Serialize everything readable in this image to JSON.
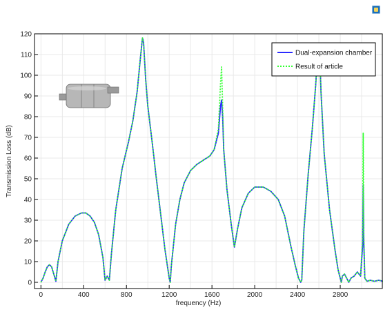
{
  "toolbar": {
    "export_icon": "image-export-icon"
  },
  "chart_data": {
    "type": "line",
    "title": "",
    "xlabel": "frequency (Hz)",
    "ylabel": "Transmission Loss (dB)",
    "xlim": [
      -60,
      3200
    ],
    "ylim": [
      -3,
      120
    ],
    "xticks": [
      0,
      400,
      800,
      1200,
      1600,
      2000,
      2400,
      2800
    ],
    "yticks": [
      0,
      10,
      20,
      30,
      40,
      50,
      60,
      70,
      80,
      90,
      100,
      110,
      120
    ],
    "xtick_labels": [
      "0",
      "400",
      "800",
      "1200",
      "1600",
      "2000",
      "2400",
      "2800"
    ],
    "ytick_labels": [
      "0",
      "10",
      "20",
      "30",
      "40",
      "50",
      "60",
      "70",
      "80",
      "90",
      "100",
      "110",
      "120"
    ],
    "grid": true,
    "legend_position": "top-right",
    "colors": {
      "primary": "#2b2bff",
      "secondary": "#33ff33"
    },
    "series": [
      {
        "name": "Dual-expansion chamber",
        "color": "#2b2bff",
        "style": "solid",
        "x": [
          0,
          20,
          40,
          60,
          80,
          100,
          120,
          140,
          160,
          200,
          260,
          320,
          380,
          420,
          460,
          500,
          540,
          580,
          600,
          620,
          640,
          660,
          700,
          760,
          820,
          860,
          900,
          930,
          950,
          960,
          980,
          1000,
          1040,
          1080,
          1120,
          1160,
          1200,
          1210,
          1220,
          1260,
          1300,
          1340,
          1400,
          1460,
          1520,
          1580,
          1620,
          1660,
          1680,
          1690,
          1700,
          1710,
          1740,
          1780,
          1810,
          1840,
          1880,
          1940,
          2000,
          2080,
          2150,
          2220,
          2280,
          2340,
          2380,
          2410,
          2430,
          2440,
          2460,
          2500,
          2540,
          2570,
          2590,
          2600,
          2610,
          2620,
          2650,
          2700,
          2750,
          2780,
          2800,
          2810,
          2820,
          2840,
          2860,
          2880,
          2900,
          2930,
          2960,
          2990,
          3010,
          3015,
          3020,
          3030,
          3050,
          3080,
          3120,
          3160,
          3200
        ],
        "y": [
          0,
          2,
          5,
          7.5,
          8.5,
          7.5,
          4,
          0.5,
          10,
          20,
          28,
          32,
          33.5,
          33.5,
          32,
          29,
          23,
          12,
          1,
          3,
          1,
          14,
          35,
          55,
          68,
          78,
          92,
          108,
          118,
          116,
          98,
          85,
          68,
          50,
          33,
          16,
          2,
          0,
          8,
          28,
          40,
          48,
          54,
          57,
          59,
          61,
          64,
          72,
          85,
          88,
          80,
          64,
          45,
          28,
          17,
          26,
          36,
          43,
          46,
          46,
          44,
          40,
          32,
          17,
          8,
          2,
          0,
          1,
          25,
          52,
          75,
          95,
          112,
          115,
          108,
          92,
          62,
          35,
          16,
          6,
          2,
          0,
          3,
          4,
          2,
          0,
          2,
          3,
          5,
          3,
          18,
          47,
          20,
          2,
          0.5,
          1,
          0.5,
          1,
          0.5
        ]
      },
      {
        "name": "Result of article",
        "color": "#33ff33",
        "style": "dotted",
        "x": [
          0,
          20,
          40,
          60,
          80,
          100,
          120,
          140,
          160,
          200,
          260,
          320,
          380,
          420,
          460,
          500,
          540,
          580,
          600,
          620,
          640,
          660,
          700,
          760,
          820,
          860,
          900,
          930,
          950,
          960,
          980,
          1000,
          1040,
          1080,
          1120,
          1160,
          1200,
          1210,
          1220,
          1260,
          1300,
          1340,
          1400,
          1460,
          1520,
          1580,
          1620,
          1660,
          1680,
          1690,
          1700,
          1710,
          1740,
          1780,
          1810,
          1840,
          1880,
          1940,
          2000,
          2080,
          2150,
          2220,
          2280,
          2340,
          2380,
          2410,
          2430,
          2440,
          2460,
          2500,
          2540,
          2570,
          2590,
          2600,
          2610,
          2620,
          2650,
          2700,
          2750,
          2780,
          2800,
          2810,
          2820,
          2840,
          2860,
          2880,
          2900,
          2930,
          2960,
          2990,
          3010,
          3015,
          3020,
          3030,
          3050,
          3080,
          3120,
          3160,
          3200
        ],
        "y": [
          0,
          2,
          5,
          7.5,
          8.5,
          7.5,
          4,
          0.5,
          10,
          20,
          28,
          32,
          33.5,
          33.5,
          32,
          29,
          23,
          12,
          1,
          3,
          1,
          14,
          35,
          55,
          68,
          78,
          92,
          108,
          118,
          116,
          98,
          85,
          68,
          50,
          33,
          16,
          2,
          0,
          8,
          28,
          40,
          48,
          54,
          57,
          59,
          61,
          64,
          74,
          96,
          104,
          85,
          64,
          45,
          28,
          17,
          26,
          36,
          43,
          46,
          46,
          44,
          40,
          32,
          17,
          8,
          2,
          0,
          1,
          25,
          52,
          75,
          95,
          111,
          113,
          106,
          92,
          62,
          35,
          16,
          6,
          2,
          0,
          3,
          4,
          2,
          0,
          2,
          3,
          5,
          3,
          22,
          72,
          24,
          2,
          0.5,
          1,
          0.5,
          1,
          0.5
        ]
      }
    ]
  }
}
